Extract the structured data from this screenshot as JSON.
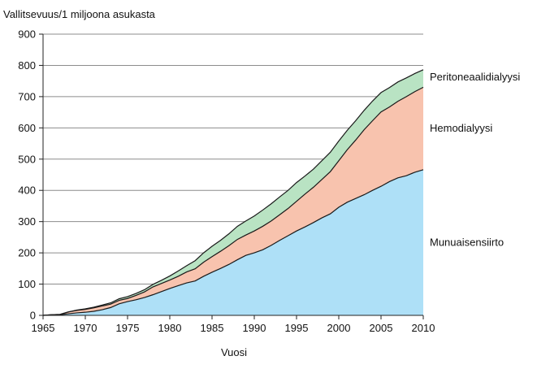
{
  "chart_data": {
    "type": "area",
    "stacked": true,
    "ylabel": "Vallitsevuus/1 miljoona asukasta",
    "xlabel": "Vuosi",
    "xlim": [
      1965,
      2010
    ],
    "ylim": [
      0,
      900
    ],
    "x_ticks": [
      1965,
      1970,
      1975,
      1980,
      1985,
      1990,
      1995,
      2000,
      2005,
      2010
    ],
    "y_ticks": [
      0,
      100,
      200,
      300,
      400,
      500,
      600,
      700,
      800,
      900
    ],
    "grid": "horizontal",
    "legend": "inline-right",
    "x": [
      1965,
      1966,
      1967,
      1968,
      1969,
      1970,
      1971,
      1972,
      1973,
      1974,
      1975,
      1976,
      1977,
      1978,
      1979,
      1980,
      1981,
      1982,
      1983,
      1984,
      1985,
      1986,
      1987,
      1988,
      1989,
      1990,
      1991,
      1992,
      1993,
      1994,
      1995,
      1996,
      1997,
      1998,
      1999,
      2000,
      2001,
      2002,
      2003,
      2004,
      2005,
      2006,
      2007,
      2008,
      2009,
      2010
    ],
    "series": [
      {
        "name": "Munuaisensiirto",
        "color": "#aee0f7",
        "values": [
          0,
          1,
          2,
          5,
          8,
          10,
          13,
          18,
          25,
          37,
          44,
          50,
          57,
          66,
          76,
          86,
          95,
          104,
          110,
          125,
          138,
          150,
          163,
          178,
          192,
          200,
          210,
          224,
          240,
          255,
          270,
          283,
          297,
          312,
          325,
          346,
          362,
          374,
          386,
          400,
          413,
          428,
          440,
          447,
          458,
          466
        ]
      },
      {
        "name": "Hemodialyysi",
        "color": "#f8c3ae",
        "values": [
          0,
          1,
          1,
          6,
          8,
          9,
          11,
          12,
          11,
          11,
          10,
          14,
          18,
          25,
          26,
          27,
          30,
          35,
          39,
          45,
          50,
          55,
          60,
          65,
          65,
          70,
          75,
          78,
          82,
          87,
          95,
          105,
          113,
          123,
          135,
          149,
          168,
          187,
          208,
          223,
          238,
          239,
          245,
          253,
          258,
          264
        ]
      },
      {
        "name": "Peritoneaalidialyysi",
        "color": "#b9e3c3",
        "values": [
          0,
          0,
          0,
          0,
          1,
          2,
          2,
          3,
          4,
          5,
          6,
          6,
          7,
          8,
          10,
          13,
          17,
          20,
          26,
          30,
          33,
          35,
          38,
          42,
          45,
          48,
          52,
          55,
          57,
          58,
          60,
          58,
          58,
          60,
          62,
          63,
          62,
          62,
          62,
          63,
          62,
          62,
          62,
          60,
          58,
          56
        ]
      }
    ]
  }
}
